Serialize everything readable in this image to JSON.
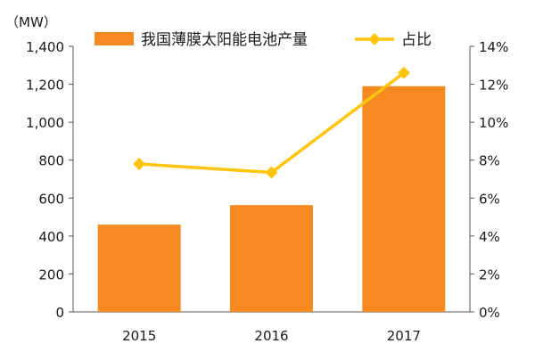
{
  "chart_data": {
    "type": "bar",
    "categories": [
      "2015",
      "2016",
      "2017"
    ],
    "series": [
      {
        "name": "我国薄膜太阳能电池产量",
        "type": "bar",
        "axis": "left",
        "color": "#F58A21",
        "values": [
          460,
          563,
          1190
        ]
      },
      {
        "name": "占比",
        "type": "line",
        "axis": "right",
        "color": "#FDC50E",
        "values": [
          7.8,
          7.35,
          12.6
        ]
      }
    ],
    "y_left": {
      "unit_label": "（MW）",
      "ylim": [
        0,
        1400
      ],
      "ticks": [
        "0",
        "200",
        "400",
        "600",
        "800",
        "1,000",
        "1,200",
        "1,400"
      ]
    },
    "y_right": {
      "ylim": [
        0,
        14
      ],
      "ticks": [
        "0%",
        "2%",
        "4%",
        "6%",
        "8%",
        "10%",
        "12%",
        "14%"
      ]
    },
    "legend_position": "top",
    "grid": false
  }
}
